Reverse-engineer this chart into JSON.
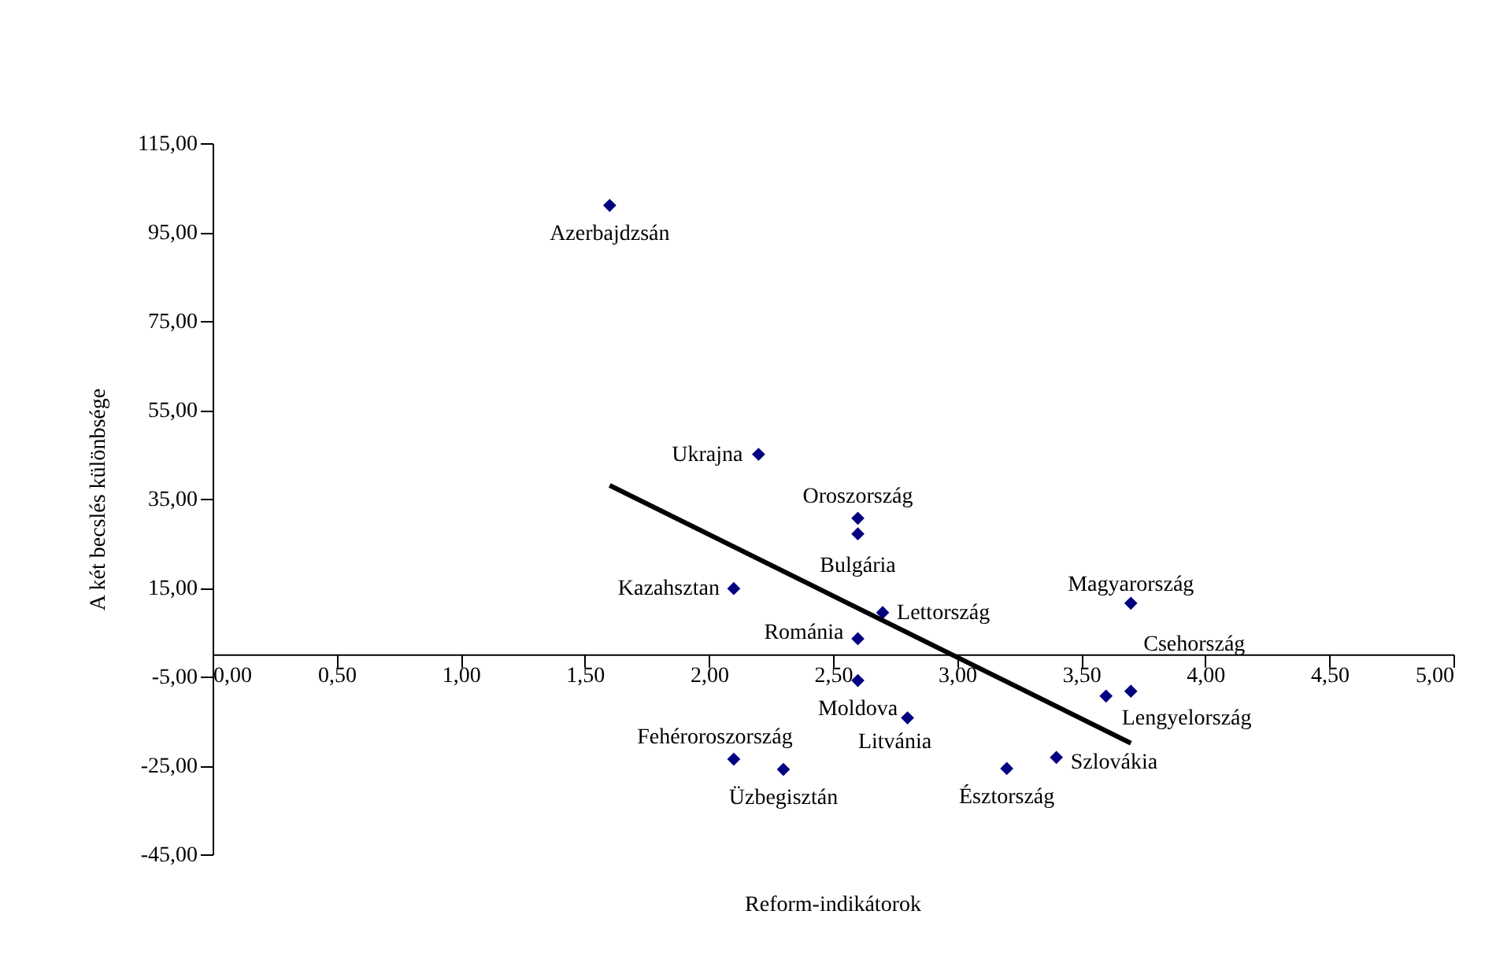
{
  "chart_data": {
    "type": "scatter",
    "xlabel": "Reform-indikátorok",
    "ylabel": "A két becslés különbsége",
    "xlim": [
      0,
      5
    ],
    "ylim": [
      -45,
      115
    ],
    "xticks": [
      {
        "value": 0,
        "label": "0,00"
      },
      {
        "value": 0.5,
        "label": "0,50"
      },
      {
        "value": 1,
        "label": "1,00"
      },
      {
        "value": 1.5,
        "label": "1,50"
      },
      {
        "value": 2,
        "label": "2,00"
      },
      {
        "value": 2.5,
        "label": "2,50"
      },
      {
        "value": 3,
        "label": "3,00"
      },
      {
        "value": 3.5,
        "label": "3,50"
      },
      {
        "value": 4,
        "label": "4,00"
      },
      {
        "value": 4.5,
        "label": "4,50"
      },
      {
        "value": 5,
        "label": "5,00"
      }
    ],
    "yticks": [
      {
        "value": -45,
        "label": "-45,00"
      },
      {
        "value": -25,
        "label": "-25,00"
      },
      {
        "value": -5,
        "label": "-5,00"
      },
      {
        "value": 15,
        "label": "15,00"
      },
      {
        "value": 35,
        "label": "35,00"
      },
      {
        "value": 55,
        "label": "55,00"
      },
      {
        "value": 75,
        "label": "75,00"
      },
      {
        "value": 95,
        "label": "95,00"
      },
      {
        "value": 115,
        "label": "115,00"
      }
    ],
    "marker": "diamond",
    "series": [
      {
        "color": "#000080",
        "x": [
          1.6,
          2.2,
          2.6,
          2.6,
          2.1,
          2.7,
          3.7,
          2.6,
          2.6,
          3.7,
          3.6,
          3.4,
          2.8,
          2.1,
          2.3,
          3.2
        ],
        "values": [
          101,
          45,
          30.6,
          27.1,
          14.8,
          9.4,
          11.5,
          3.5,
          -5.9,
          -8.3,
          -9.4,
          -23.2,
          -14.3,
          -23.6,
          -25.9,
          -25.7
        ]
      },
      {
        "type": "line",
        "marker": "none",
        "color": "#000000",
        "x": [
          1.6,
          3.7
        ],
        "values": [
          38,
          -20
        ]
      }
    ],
    "annotations": [
      {
        "text": "Azerbajdzsán",
        "x": 1.6,
        "y": 101
      },
      {
        "text": "Ukrajna",
        "x": 2.2,
        "y": 45
      },
      {
        "text": "Oroszország",
        "x": 2.6,
        "y": 30.6
      },
      {
        "text": "Bulgária",
        "x": 2.6,
        "y": 27.1
      },
      {
        "text": "Kazahsztan",
        "x": 2.1,
        "y": 14.8
      },
      {
        "text": "Lettország",
        "x": 2.7,
        "y": 9.4
      },
      {
        "text": "Magyarország",
        "x": 3.7,
        "y": 11.5
      },
      {
        "text": "Románia",
        "x": 2.6,
        "y": 3.5
      },
      {
        "text": "Moldova",
        "x": 2.6,
        "y": -5.9
      },
      {
        "text": "Csehország",
        "x": 3.7,
        "y": -8.3
      },
      {
        "text": "Lengyelország",
        "x": 3.6,
        "y": -9.4
      },
      {
        "text": "Szlovákia",
        "x": 3.4,
        "y": -23.2
      },
      {
        "text": "Litvánia",
        "x": 2.8,
        "y": -14.3
      },
      {
        "text": "Fehéroroszország",
        "x": 2.1,
        "y": -23.6
      },
      {
        "text": "Üzbegisztán",
        "x": 2.3,
        "y": -25.9
      },
      {
        "text": "Észtország",
        "x": 3.2,
        "y": -25.7
      }
    ]
  }
}
